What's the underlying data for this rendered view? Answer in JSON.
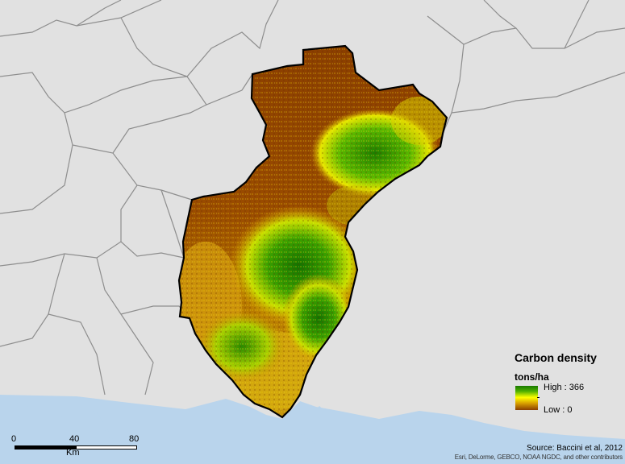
{
  "legend": {
    "title": "Carbon density",
    "unit": "tons/ha",
    "high_label": "High : 366",
    "low_label": "Low : 0",
    "ramp_colors": [
      "#1a7a00",
      "#4caf00",
      "#ffff00",
      "#d8a000",
      "#8a3e00"
    ]
  },
  "scalebar": {
    "tick_0": "0",
    "tick_40": "40",
    "tick_80": "80",
    "unit": "Km"
  },
  "attribution": {
    "source": "Source: Baccini et al, 2012",
    "credits": "Esri, DeLorme, GEBCO, NOAA NGDC, and other contributors"
  },
  "colors": {
    "background": "#e1e1e1",
    "water": "#b9d4ec",
    "boundary": "#8e8e8e",
    "state_outline": "#000000",
    "low_carbon": "#8a3e00",
    "high_carbon": "#1a7a00"
  }
}
